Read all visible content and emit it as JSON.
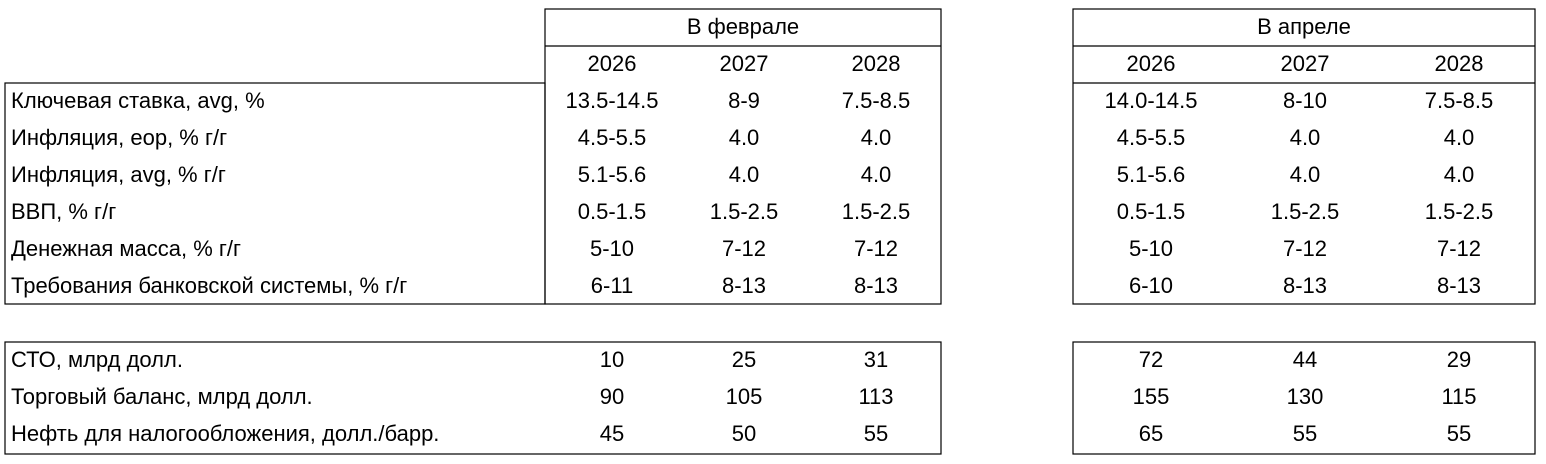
{
  "row_labels": {
    "top": [
      "Ключевая ставка, avg, %",
      "Инфляция, eop, % г/г",
      "Инфляция, avg, % г/г",
      "ВВП, % г/г",
      "Денежная масса, % г/г",
      "Требования банковской системы, % г/г"
    ],
    "bottom": [
      "СТО, млрд долл.",
      "Торговый баланс, млрд долл.",
      "Нефть для налогообложения, долл./барр."
    ]
  },
  "groups": [
    {
      "title": "В феврале",
      "years": [
        "2026",
        "2027",
        "2028"
      ],
      "top_rows": [
        [
          "13.5-14.5",
          "8-9",
          "7.5-8.5"
        ],
        [
          "4.5-5.5",
          "4.0",
          "4.0"
        ],
        [
          "5.1-5.6",
          "4.0",
          "4.0"
        ],
        [
          "0.5-1.5",
          "1.5-2.5",
          "1.5-2.5"
        ],
        [
          "5-10",
          "7-12",
          "7-12"
        ],
        [
          "6-11",
          "8-13",
          "8-13"
        ]
      ],
      "bottom_rows": [
        [
          "10",
          "25",
          "31"
        ],
        [
          "90",
          "105",
          "113"
        ],
        [
          "45",
          "50",
          "55"
        ]
      ]
    },
    {
      "title": "В апреле",
      "years": [
        "2026",
        "2027",
        "2028"
      ],
      "top_rows": [
        [
          "14.0-14.5",
          "8-10",
          "7.5-8.5"
        ],
        [
          "4.5-5.5",
          "4.0",
          "4.0"
        ],
        [
          "5.1-5.6",
          "4.0",
          "4.0"
        ],
        [
          "0.5-1.5",
          "1.5-2.5",
          "1.5-2.5"
        ],
        [
          "5-10",
          "7-12",
          "7-12"
        ],
        [
          "6-10",
          "8-13",
          "8-13"
        ]
      ],
      "bottom_rows": [
        [
          "72",
          "44",
          "29"
        ],
        [
          "155",
          "130",
          "115"
        ],
        [
          "65",
          "55",
          "55"
        ]
      ]
    }
  ]
}
